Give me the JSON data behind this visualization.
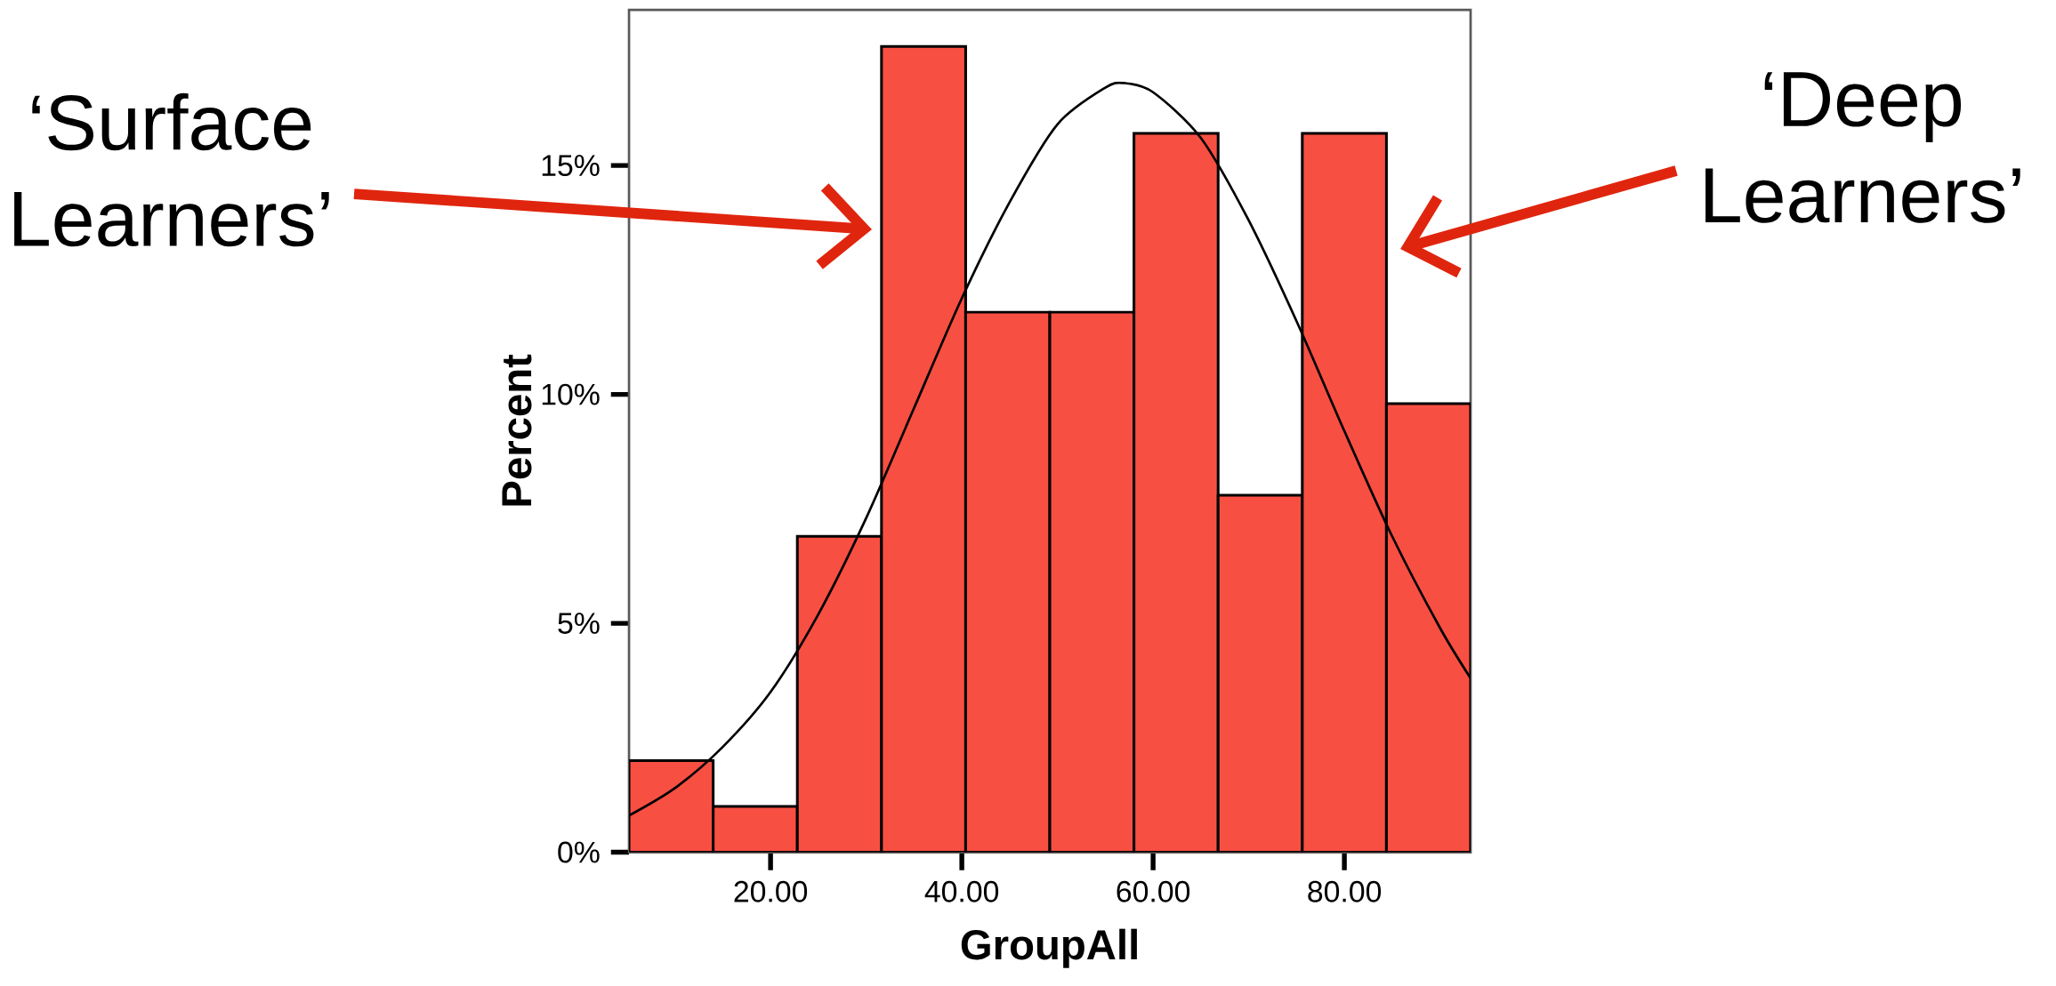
{
  "chart_data": {
    "type": "histogram",
    "xlabel": "GroupAll",
    "ylabel": "Percent",
    "bins": [
      5.2,
      14.0,
      22.8,
      31.6,
      40.4,
      49.2,
      58.0,
      66.8,
      75.6,
      84.4,
      93.2
    ],
    "series": [
      {
        "color": "#f84f43",
        "values": [
          2.0,
          1.0,
          6.9,
          17.6,
          11.8,
          11.8,
          15.7,
          7.8,
          15.7,
          9.8
        ]
      },
      {
        "type": "line",
        "color": "#000000",
        "x": [
          5.2,
          10,
          15,
          20,
          25,
          30,
          35,
          40,
          45,
          50,
          55,
          57,
          60,
          65,
          70,
          75,
          80,
          85,
          90,
          93.2
        ],
        "values": [
          0.8,
          1.4,
          2.3,
          3.5,
          5.2,
          7.3,
          9.7,
          12.1,
          14.2,
          15.9,
          16.7,
          16.8,
          16.6,
          15.6,
          13.8,
          11.6,
          9.2,
          6.9,
          4.9,
          3.8
        ]
      }
    ],
    "xlim": [
      5.2,
      93.2
    ],
    "ylim": [
      0,
      18.4
    ],
    "xticks": [
      {
        "value": 20,
        "label": "20.00"
      },
      {
        "value": 40,
        "label": "40.00"
      },
      {
        "value": 60,
        "label": "60.00"
      },
      {
        "value": 80,
        "label": "80.00"
      }
    ],
    "yticks": [
      {
        "value": 0,
        "label": "0%"
      },
      {
        "value": 5,
        "label": "5%"
      },
      {
        "value": 10,
        "label": "10%"
      },
      {
        "value": 15,
        "label": "15%"
      }
    ],
    "marker": "none",
    "grid": false,
    "annotations": [
      "‘Surface Learners’",
      "‘Deep Learners’"
    ]
  }
}
